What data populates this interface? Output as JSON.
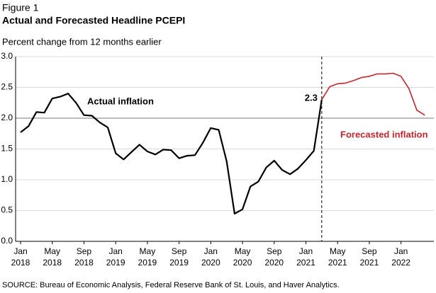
{
  "chart_data": {
    "type": "line",
    "figure_label": "Figure 1",
    "title": "Actual and Forecasted Headline PCEPI",
    "y_label": "Percent change from 12 months earlier",
    "source": "SOURCE: Bureau of Economic Analysis, Federal Reserve Bank of St. Louis, and Haver Analytics.",
    "x": [
      "2018-01",
      "2018-02",
      "2018-03",
      "2018-04",
      "2018-05",
      "2018-06",
      "2018-07",
      "2018-08",
      "2018-09",
      "2018-10",
      "2018-11",
      "2018-12",
      "2019-01",
      "2019-02",
      "2019-03",
      "2019-04",
      "2019-05",
      "2019-06",
      "2019-07",
      "2019-08",
      "2019-09",
      "2019-10",
      "2019-11",
      "2019-12",
      "2020-01",
      "2020-02",
      "2020-03",
      "2020-04",
      "2020-05",
      "2020-06",
      "2020-07",
      "2020-08",
      "2020-09",
      "2020-10",
      "2020-11",
      "2020-12",
      "2021-01",
      "2021-02",
      "2021-03",
      "2021-04",
      "2021-05",
      "2021-06",
      "2021-07",
      "2021-08",
      "2021-09",
      "2021-10",
      "2021-11",
      "2021-12",
      "2022-01",
      "2022-02",
      "2022-03",
      "2022-04"
    ],
    "series": [
      {
        "name": "Actual inflation",
        "color": "#000000",
        "values": [
          1.77,
          1.87,
          2.1,
          2.09,
          2.32,
          2.35,
          2.4,
          2.25,
          2.05,
          2.04,
          1.93,
          1.85,
          1.43,
          1.33,
          1.45,
          1.57,
          1.46,
          1.41,
          1.49,
          1.48,
          1.35,
          1.39,
          1.4,
          1.6,
          1.84,
          1.81,
          1.3,
          0.45,
          0.52,
          0.89,
          0.97,
          1.2,
          1.31,
          1.16,
          1.09,
          1.18,
          1.32,
          1.47,
          2.3,
          null,
          null,
          null,
          null,
          null,
          null,
          null,
          null,
          null,
          null,
          null,
          null,
          null
        ]
      },
      {
        "name": "Forecasted inflation",
        "color": "#c1272d",
        "values": [
          null,
          null,
          null,
          null,
          null,
          null,
          null,
          null,
          null,
          null,
          null,
          null,
          null,
          null,
          null,
          null,
          null,
          null,
          null,
          null,
          null,
          null,
          null,
          null,
          null,
          null,
          null,
          null,
          null,
          null,
          null,
          null,
          null,
          null,
          null,
          null,
          null,
          null,
          2.3,
          2.51,
          2.56,
          2.57,
          2.61,
          2.66,
          2.68,
          2.72,
          2.72,
          2.73,
          2.68,
          2.48,
          2.13,
          2.05
        ]
      }
    ],
    "annotations": [
      {
        "text": "2.3",
        "at": "2021-03"
      }
    ],
    "xticks": [
      {
        "value": "2018-01",
        "label": "Jan 2018"
      },
      {
        "value": "2018-05",
        "label": "May 2018"
      },
      {
        "value": "2018-09",
        "label": "Sep 2018"
      },
      {
        "value": "2019-01",
        "label": "Jan 2019"
      },
      {
        "value": "2019-05",
        "label": "May 2019"
      },
      {
        "value": "2019-09",
        "label": "Sep 2019"
      },
      {
        "value": "2020-01",
        "label": "Jan 2020"
      },
      {
        "value": "2020-05",
        "label": "May 2020"
      },
      {
        "value": "2020-09",
        "label": "Sep 2020"
      },
      {
        "value": "2021-01",
        "label": "Jan 2021"
      },
      {
        "value": "2021-05",
        "label": "May 2021"
      },
      {
        "value": "2021-09",
        "label": "Sep 2021"
      },
      {
        "value": "2022-01",
        "label": "Jan 2022"
      }
    ],
    "ylim": [
      0,
      3
    ],
    "yticks": [
      {
        "value": 0,
        "label": "0.0"
      },
      0.5,
      {
        "value": 1,
        "label": "1.0"
      },
      1.5,
      {
        "value": 2,
        "label": "2.0"
      },
      2.5,
      {
        "value": 3,
        "label": "3.0"
      }
    ],
    "reference_line": 2,
    "grid": true
  }
}
